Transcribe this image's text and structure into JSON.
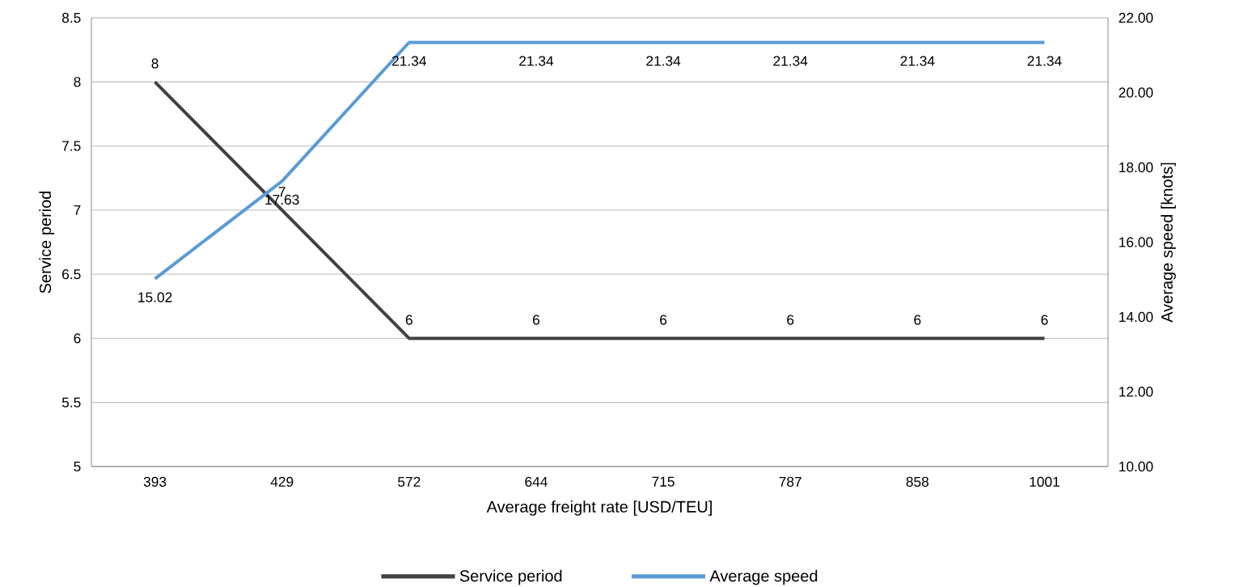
{
  "chart_data": {
    "type": "line",
    "xlabel": "Average freight rate [USD/TEU]",
    "ylabel": "Service period",
    "y2label": "Average speed [knots]",
    "categories": [
      "393",
      "429",
      "572",
      "644",
      "715",
      "787",
      "858",
      "1001"
    ],
    "series": [
      {
        "name": "Service period",
        "color": "#404040",
        "values": [
          8,
          7,
          6,
          6,
          6,
          6,
          6,
          6
        ]
      },
      {
        "name": "Average speed",
        "color": "#5b9bd5",
        "axis": "y2",
        "values": [
          15.02,
          17.63,
          21.34,
          21.34,
          21.34,
          21.34,
          21.34,
          21.34
        ]
      }
    ],
    "ylim": [
      5,
      8.5
    ],
    "yticks": [
      5,
      5.5,
      6,
      6.5,
      7,
      7.5,
      8,
      8.5
    ],
    "y2lim": [
      10,
      22
    ],
    "y2ticks": [
      {
        "value": 10,
        "label": "10.00"
      },
      {
        "value": 12,
        "label": "12.00"
      },
      {
        "value": 14,
        "label": "14.00"
      },
      {
        "value": 16,
        "label": "16.00"
      },
      {
        "value": 18,
        "label": "18.00"
      },
      {
        "value": 20,
        "label": "20.00"
      },
      {
        "value": 22,
        "label": "22.00"
      }
    ],
    "grid": "y",
    "legend": "bottom",
    "data_labels": true
  }
}
